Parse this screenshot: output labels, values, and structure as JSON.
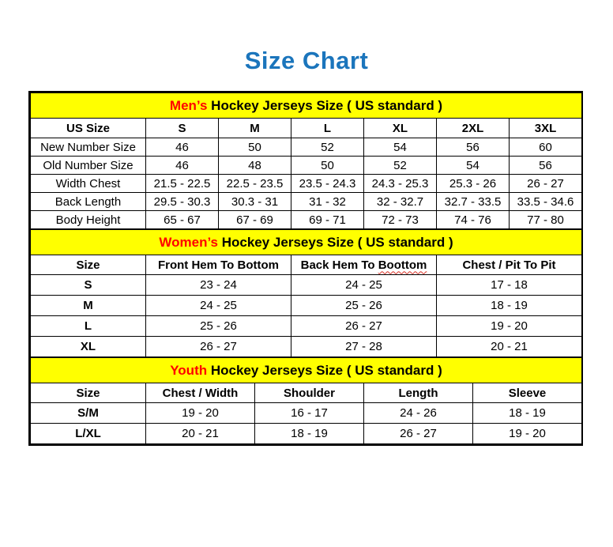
{
  "page": {
    "title": "Size Chart"
  },
  "colors": {
    "title_blue": "#1B75BC",
    "band_yellow": "#FFFF00",
    "highlight_red": "#FF0000",
    "table_border": "#000000"
  },
  "chart_data": [
    {
      "type": "table",
      "id": "mens",
      "title": "Men’s Hockey Jerseys Size ( US standard )",
      "title_highlight": "Men’s",
      "title_rest": "Hockey Jerseys Size ( US standard )",
      "columns": [
        "US Size",
        "S",
        "M",
        "L",
        "XL",
        "2XL",
        "3XL"
      ],
      "rows": [
        [
          "New Number Size",
          "46",
          "50",
          "52",
          "54",
          "56",
          "60"
        ],
        [
          "Old Number Size",
          "46",
          "48",
          "50",
          "52",
          "54",
          "56"
        ],
        [
          "Width Chest",
          "21.5 - 22.5",
          "22.5 - 23.5",
          "23.5 - 24.3",
          "24.3 - 25.3",
          "25.3 - 26",
          "26 - 27"
        ],
        [
          "Back Length",
          "29.5 - 30.3",
          "30.3 - 31",
          "31 - 32",
          "32 - 32.7",
          "32.7 - 33.5",
          "33.5 - 34.6"
        ],
        [
          "Body Height",
          "65 - 67",
          "67 - 69",
          "69 - 71",
          "72 - 73",
          "74 - 76",
          "77 - 80"
        ]
      ]
    },
    {
      "type": "table",
      "id": "womens",
      "title": "Women’s Hockey Jerseys Size ( US standard )",
      "title_highlight": "Women’s",
      "title_rest": "Hockey Jerseys Size ( US standard )",
      "squiggle_word": "Boottom",
      "columns": [
        "Size",
        "Front Hem To Bottom",
        "Back Hem To Boottom",
        "Chest / Pit To Pit"
      ],
      "rows": [
        [
          "S",
          "23 - 24",
          "24 - 25",
          "17 - 18"
        ],
        [
          "M",
          "24 - 25",
          "25 - 26",
          "18 - 19"
        ],
        [
          "L",
          "25 - 26",
          "26 - 27",
          "19 - 20"
        ],
        [
          "XL",
          "26 - 27",
          "27 - 28",
          "20 - 21"
        ]
      ]
    },
    {
      "type": "table",
      "id": "youth",
      "title": "Youth Hockey Jerseys Size ( US standard )",
      "title_highlight": "Youth",
      "title_rest": "Hockey Jerseys Size ( US standard )",
      "columns": [
        "Size",
        "Chest / Width",
        "Shoulder",
        "Length",
        "Sleeve"
      ],
      "rows": [
        [
          "S/M",
          "19 - 20",
          "16 - 17",
          "24 - 26",
          "18 - 19"
        ],
        [
          "L/XL",
          "20 - 21",
          "18 - 19",
          "26 - 27",
          "19 - 20"
        ]
      ]
    }
  ]
}
